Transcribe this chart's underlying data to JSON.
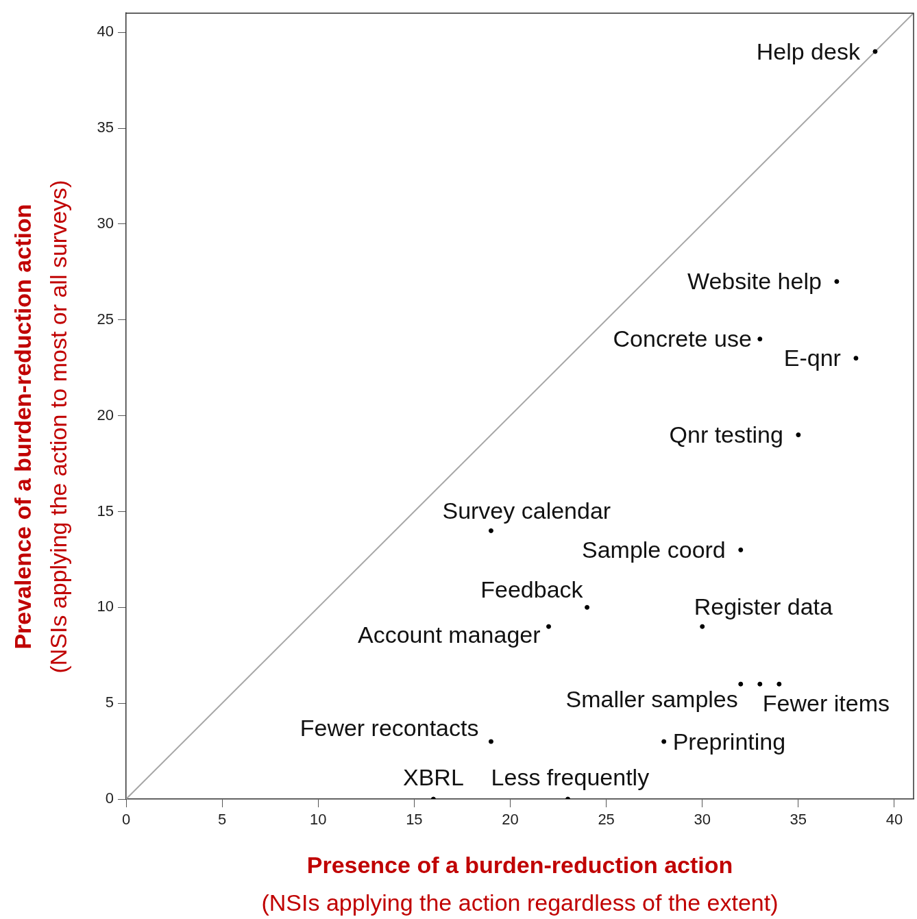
{
  "chart_data": {
    "type": "scatter",
    "xlabel": "Presence of a burden-reduction action\n(NSIs applying the action regardless of the extent)",
    "ylabel": "Prevalence of a burden-reduction action\n(NSIs applying the action to most or all surveys)",
    "xlim": [
      0,
      41
    ],
    "ylim": [
      0,
      41
    ],
    "xticks": [
      0,
      5,
      10,
      15,
      20,
      25,
      30,
      35,
      40
    ],
    "yticks": [
      0,
      5,
      10,
      15,
      20,
      25,
      30,
      35,
      40
    ],
    "grid": false,
    "legend": false,
    "marker": "circle",
    "series": [
      {
        "color": "#000000",
        "x": [
          39,
          37,
          33,
          38,
          35,
          19,
          32,
          24,
          30,
          22,
          32,
          33,
          34,
          19,
          28,
          16,
          23
        ],
        "values": [
          39,
          27,
          24,
          23,
          19,
          14,
          13,
          10,
          9,
          9,
          6,
          6,
          6,
          3,
          3,
          0,
          0
        ]
      },
      {
        "type": "line",
        "color": "#a6a6a6",
        "line_style": "solid",
        "marker": "none",
        "x": [
          0,
          41
        ],
        "values": [
          0,
          41
        ]
      }
    ],
    "annotations": [
      {
        "text": "Help desk",
        "x": 39,
        "y": 39
      },
      {
        "text": "Website help",
        "x": 37,
        "y": 27
      },
      {
        "text": "Concrete use",
        "x": 33,
        "y": 24
      },
      {
        "text": "E-qnr",
        "x": 38,
        "y": 23
      },
      {
        "text": "Qnr testing",
        "x": 35,
        "y": 19
      },
      {
        "text": "Survey calendar",
        "x": 19,
        "y": 14
      },
      {
        "text": "Sample coord",
        "x": 32,
        "y": 13
      },
      {
        "text": "Feedback",
        "x": 24,
        "y": 10
      },
      {
        "text": "Register data",
        "x": 30,
        "y": 9
      },
      {
        "text": "Account manager",
        "x": 22,
        "y": 9
      },
      {
        "text": "Smaller samples",
        "x": 32,
        "y": 6
      },
      {
        "text": "Fewer items",
        "x": 34,
        "y": 6
      },
      {
        "text": "Fewer recontacts",
        "x": 19,
        "y": 3
      },
      {
        "text": "Preprinting",
        "x": 28,
        "y": 3
      },
      {
        "text": "XBRL",
        "x": 16,
        "y": 0
      },
      {
        "text": "Less frequently",
        "x": 23,
        "y": 0
      }
    ]
  }
}
